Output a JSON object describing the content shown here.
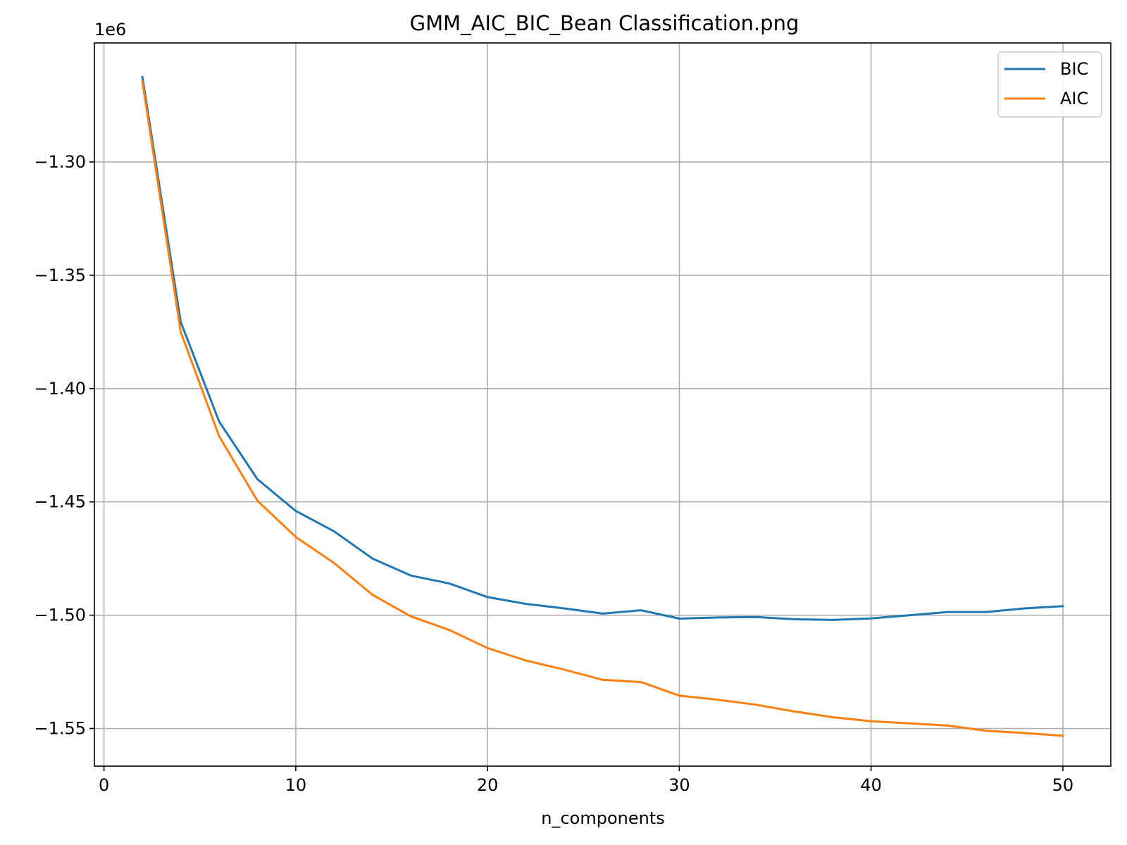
{
  "chart_data": {
    "type": "line",
    "title": "GMM_AIC_BIC_Bean Classification.png",
    "xlabel": "n_components",
    "ylabel": "",
    "y_offset_label": "1e6",
    "xlim": [
      -0.5,
      52.5
    ],
    "ylim": [
      -1.5666,
      -1.2475
    ],
    "x_ticks": [
      0,
      10,
      20,
      30,
      40,
      50
    ],
    "y_ticks": [
      -1.3,
      -1.35,
      -1.4,
      -1.45,
      -1.5,
      -1.55
    ],
    "grid": true,
    "legend_position": "top-right",
    "x": [
      2,
      4,
      6,
      8,
      10,
      12,
      14,
      16,
      18,
      20,
      22,
      24,
      26,
      28,
      30,
      32,
      34,
      36,
      38,
      40,
      42,
      44,
      46,
      48,
      50
    ],
    "series": [
      {
        "name": "BIC",
        "color": "#1f77b4",
        "values": [
          -1.2625,
          -1.3705,
          -1.4145,
          -1.44,
          -1.454,
          -1.463,
          -1.475,
          -1.4825,
          -1.486,
          -1.492,
          -1.495,
          -1.497,
          -1.4993,
          -1.4978,
          -1.5015,
          -1.501,
          -1.5008,
          -1.5018,
          -1.5021,
          -1.5014,
          -1.5,
          -1.4986,
          -1.4986,
          -1.497,
          -1.496
        ]
      },
      {
        "name": "AIC",
        "color": "#ff7f0e",
        "values": [
          -1.2645,
          -1.375,
          -1.421,
          -1.4495,
          -1.4655,
          -1.477,
          -1.491,
          -1.5005,
          -1.5065,
          -1.5145,
          -1.52,
          -1.524,
          -1.5285,
          -1.5295,
          -1.5355,
          -1.5373,
          -1.5395,
          -1.5425,
          -1.545,
          -1.5468,
          -1.5477,
          -1.5487,
          -1.551,
          -1.552,
          -1.5532
        ]
      }
    ]
  }
}
